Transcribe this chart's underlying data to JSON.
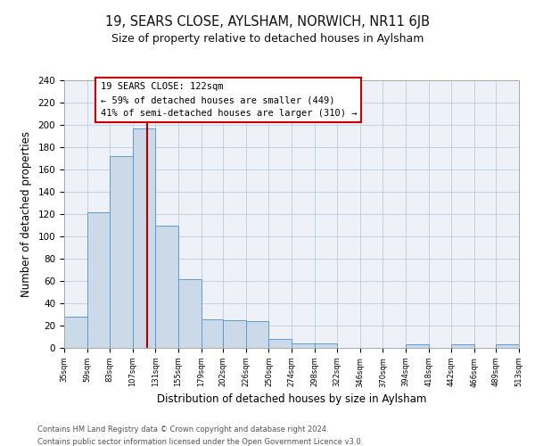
{
  "title": "19, SEARS CLOSE, AYLSHAM, NORWICH, NR11 6JB",
  "subtitle": "Size of property relative to detached houses in Aylsham",
  "xlabel": "Distribution of detached houses by size in Aylsham",
  "ylabel": "Number of detached properties",
  "bin_edges": [
    35,
    59,
    83,
    107,
    131,
    155,
    179,
    202,
    226,
    250,
    274,
    298,
    322,
    346,
    370,
    394,
    418,
    442,
    466,
    489,
    513
  ],
  "bar_heights": [
    28,
    122,
    172,
    197,
    110,
    62,
    26,
    25,
    24,
    8,
    4,
    4,
    0,
    0,
    0,
    3,
    0,
    3,
    0,
    3
  ],
  "bar_color": "#ccd9e8",
  "bar_edge_color": "#5b9bd5",
  "vline_x": 122,
  "vline_color": "#aa0000",
  "annotation_line1": "19 SEARS CLOSE: 122sqm",
  "annotation_line2": "← 59% of detached houses are smaller (449)",
  "annotation_line3": "41% of semi-detached houses are larger (310) →",
  "annotation_box_color": "#ffffff",
  "annotation_box_edge_color": "#cc0000",
  "footer_line1": "Contains HM Land Registry data © Crown copyright and database right 2024.",
  "footer_line2": "Contains public sector information licensed under the Open Government Licence v3.0.",
  "ylim": [
    0,
    240
  ],
  "background_color": "#eef2f8",
  "title_fontsize": 10.5,
  "subtitle_fontsize": 9,
  "tick_labels": [
    "35sqm",
    "59sqm",
    "83sqm",
    "107sqm",
    "131sqm",
    "155sqm",
    "179sqm",
    "202sqm",
    "226sqm",
    "250sqm",
    "274sqm",
    "298sqm",
    "322sqm",
    "346sqm",
    "370sqm",
    "394sqm",
    "418sqm",
    "442sqm",
    "466sqm",
    "489sqm",
    "513sqm"
  ]
}
